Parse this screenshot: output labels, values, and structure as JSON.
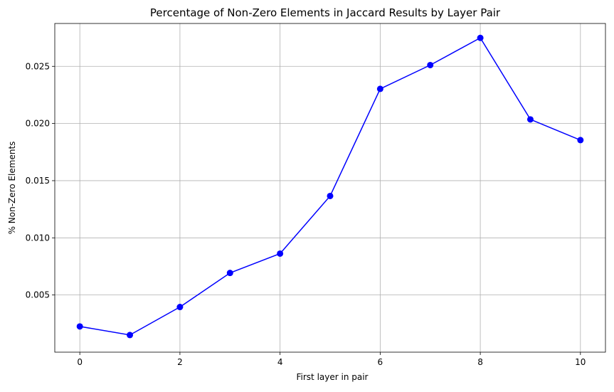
{
  "chart_data": {
    "type": "line",
    "title": "Percentage of Non-Zero Elements in Jaccard Results by Layer Pair",
    "xlabel": "First layer in pair",
    "ylabel": "% Non-Zero Elements",
    "x": [
      0,
      1,
      2,
      3,
      4,
      5,
      6,
      7,
      8,
      9,
      10
    ],
    "series": [
      {
        "values": [
          0.00225,
          0.0015,
          0.00395,
          0.00693,
          0.00862,
          0.01366,
          0.02303,
          0.02511,
          0.02749,
          0.02036,
          0.01855
        ],
        "color": "#0000ff",
        "marker": "circle"
      }
    ],
    "xlim": [
      -0.5,
      10.5
    ],
    "ylim": [
      0.0,
      0.02875
    ],
    "xticks": [
      "0",
      "2",
      "4",
      "6",
      "8",
      "10"
    ],
    "yticks": [
      "0.005",
      "0.010",
      "0.015",
      "0.020",
      "0.025"
    ],
    "grid": true,
    "legend": "none",
    "colors": {
      "grid": "#b0b0b0",
      "axes": "#000000",
      "background": "#ffffff"
    }
  }
}
